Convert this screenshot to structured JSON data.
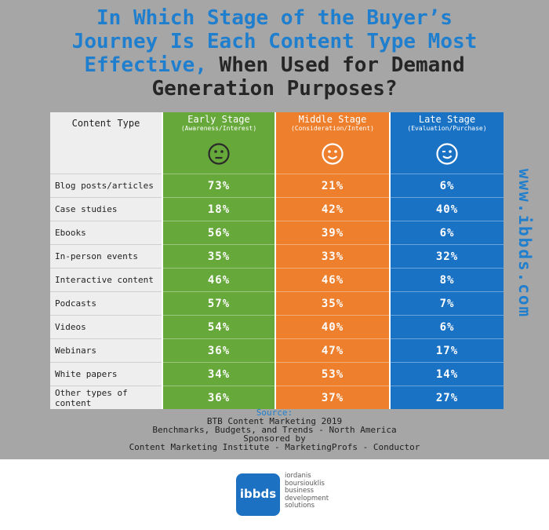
{
  "title": {
    "line1": "In Which Stage of the Buyer’s",
    "line2": "Journey Is Each Content Type Most",
    "line3_blue": "Effective,",
    "line3_dark": " When Used for Demand",
    "line4": "Generation Purposes?"
  },
  "side_text": "www.ibbds.com",
  "chart_data": {
    "type": "table",
    "columns": [
      {
        "name": "Early Stage",
        "sub": "(Awareness/Interest)",
        "color": "#66a83a",
        "face": "neutral"
      },
      {
        "name": "Middle Stage",
        "sub": "(Consideration/Intent)",
        "color": "#ee7f2d",
        "face": "smile"
      },
      {
        "name": "Late Stage",
        "sub": "(Evaluation/Purchase)",
        "color": "#1a72c5",
        "face": "wink"
      }
    ],
    "header_label": "Content Type",
    "rows": [
      {
        "label": "Blog posts/articles",
        "values": [
          "73%",
          "21%",
          "6%"
        ]
      },
      {
        "label": "Case studies",
        "values": [
          "18%",
          "42%",
          "40%"
        ]
      },
      {
        "label": "Ebooks",
        "values": [
          "56%",
          "39%",
          "6%"
        ]
      },
      {
        "label": "In-person events",
        "values": [
          "35%",
          "33%",
          "32%"
        ]
      },
      {
        "label": "Interactive content",
        "values": [
          "46%",
          "46%",
          "8%"
        ]
      },
      {
        "label": "Podcasts",
        "values": [
          "57%",
          "35%",
          "7%"
        ]
      },
      {
        "label": "Videos",
        "values": [
          "54%",
          "40%",
          "6%"
        ]
      },
      {
        "label": "Webinars",
        "values": [
          "36%",
          "47%",
          "17%"
        ]
      },
      {
        "label": "White papers",
        "values": [
          "34%",
          "53%",
          "14%"
        ]
      },
      {
        "label": "Other types of content",
        "values": [
          "36%",
          "37%",
          "27%"
        ]
      }
    ]
  },
  "source": {
    "label": "Source:",
    "line1": "BTB Content Marketing 2019",
    "line2": "Benchmarks, Budgets, and Trends - North America",
    "line3": "Sponsored by",
    "line4": "Content Marketing Institute - MarketingProfs - Conductor"
  },
  "logo": {
    "mark": "ibbds",
    "text": [
      "iordanis",
      "boursiouklis",
      "business",
      "development",
      "solutions"
    ]
  }
}
